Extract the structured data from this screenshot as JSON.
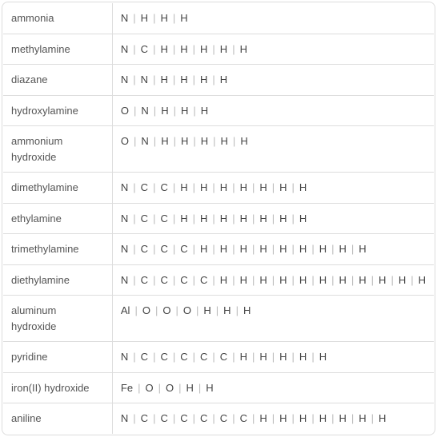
{
  "rows": [
    {
      "name": "ammonia",
      "elements": [
        "N",
        "H",
        "H",
        "H"
      ]
    },
    {
      "name": "methylamine",
      "elements": [
        "N",
        "C",
        "H",
        "H",
        "H",
        "H",
        "H"
      ]
    },
    {
      "name": "diazane",
      "elements": [
        "N",
        "N",
        "H",
        "H",
        "H",
        "H"
      ]
    },
    {
      "name": "hydroxylamine",
      "elements": [
        "O",
        "N",
        "H",
        "H",
        "H"
      ]
    },
    {
      "name": "ammonium hydroxide",
      "elements": [
        "O",
        "N",
        "H",
        "H",
        "H",
        "H",
        "H"
      ]
    },
    {
      "name": "dimethylamine",
      "elements": [
        "N",
        "C",
        "C",
        "H",
        "H",
        "H",
        "H",
        "H",
        "H",
        "H"
      ]
    },
    {
      "name": "ethylamine",
      "elements": [
        "N",
        "C",
        "C",
        "H",
        "H",
        "H",
        "H",
        "H",
        "H",
        "H"
      ]
    },
    {
      "name": "trimethylamine",
      "elements": [
        "N",
        "C",
        "C",
        "C",
        "H",
        "H",
        "H",
        "H",
        "H",
        "H",
        "H",
        "H",
        "H"
      ]
    },
    {
      "name": "diethylamine",
      "elements": [
        "N",
        "C",
        "C",
        "C",
        "C",
        "H",
        "H",
        "H",
        "H",
        "H",
        "H",
        "H",
        "H",
        "H",
        "H",
        "H"
      ]
    },
    {
      "name": "aluminum hydroxide",
      "elements": [
        "Al",
        "O",
        "O",
        "O",
        "H",
        "H",
        "H"
      ]
    },
    {
      "name": "pyridine",
      "elements": [
        "N",
        "C",
        "C",
        "C",
        "C",
        "C",
        "H",
        "H",
        "H",
        "H",
        "H"
      ]
    },
    {
      "name": "iron(II) hydroxide",
      "elements": [
        "Fe",
        "O",
        "O",
        "H",
        "H"
      ]
    },
    {
      "name": "aniline",
      "elements": [
        "N",
        "C",
        "C",
        "C",
        "C",
        "C",
        "C",
        "H",
        "H",
        "H",
        "H",
        "H",
        "H",
        "H"
      ]
    }
  ],
  "separator": "|",
  "colors": {
    "border": "#ddd",
    "text": "#444",
    "label": "#555",
    "separator": "#bbb",
    "background": "#ffffff"
  },
  "fontsize": 13,
  "label_column_width": 168
}
